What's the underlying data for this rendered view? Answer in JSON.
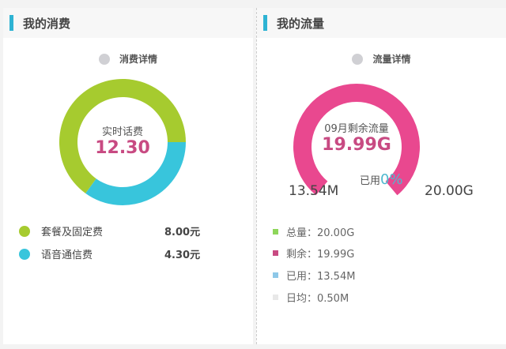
{
  "spending": {
    "title": "我的消费",
    "legend": "消费详情",
    "center_label": "实时话费",
    "center_value": "12.30",
    "items": [
      {
        "label": "套餐及固定费",
        "value": "8.00元",
        "amount": 8.0,
        "color": "#a6cb2f"
      },
      {
        "label": "语音通信费",
        "value": "4.30元",
        "amount": 4.3,
        "color": "#38c5dc"
      }
    ]
  },
  "data": {
    "title": "我的流量",
    "legend": "流量详情",
    "center_label": "09月剩余流量",
    "center_value": "19.99G",
    "used_label": "已用",
    "used_pct": "0%",
    "used_fraction": 0.0007,
    "min_label": "13.54M",
    "max_label": "20.00G",
    "gauge_color": "#e9488f",
    "items": [
      {
        "label": "总量：20.00G",
        "color": "#8ed65a"
      },
      {
        "label": "剩余：19.99G",
        "color": "#c84a82"
      },
      {
        "label": "已用：13.54M",
        "color": "#8ec8e8"
      },
      {
        "label": "日均：0.50M",
        "color": "#e8e8e8"
      }
    ]
  },
  "colors": {
    "accent": "#2eb3d3",
    "value": "#c84a82",
    "used": "#4fb9cf"
  }
}
